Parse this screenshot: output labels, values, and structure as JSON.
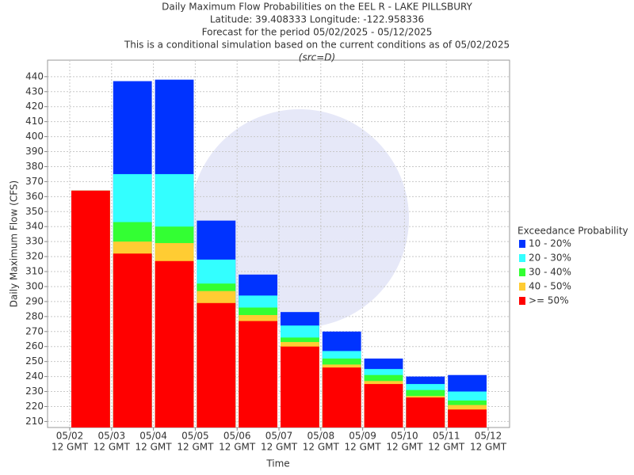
{
  "chart_data": {
    "type": "bar",
    "title": [
      "Daily Maximum Flow Probabilities on the EEL R - LAKE PILLSBURY",
      "Latitude: 39.408333 Longitude: -122.958336",
      "Forecast for the period 05/02/2025 - 05/12/2025",
      "This is a conditional simulation based on the current conditions as of 05/02/2025",
      "(src=D)"
    ],
    "y_label": "Daily Maximum Flow (CFS)",
    "x_label": "Time",
    "legend_title": "Exceedance Probability",
    "x_labels": [
      [
        "05/02",
        "12 GMT"
      ],
      [
        "05/03",
        "12 GMT"
      ],
      [
        "05/04",
        "12 GMT"
      ],
      [
        "05/05",
        "12 GMT"
      ],
      [
        "05/06",
        "12 GMT"
      ],
      [
        "05/07",
        "12 GMT"
      ],
      [
        "05/08",
        "12 GMT"
      ],
      [
        "05/09",
        "12 GMT"
      ],
      [
        "05/10",
        "12 GMT"
      ],
      [
        "05/11",
        "12 GMT"
      ],
      [
        "05/12",
        "12 GMT"
      ]
    ],
    "series": [
      {
        "name": "10 - 20%",
        "color": "#0033ff",
        "values": [
          364,
          437,
          438,
          344,
          308,
          283,
          270,
          252,
          240,
          241
        ]
      },
      {
        "name": "20 - 30%",
        "color": "#33ffff",
        "values": [
          364,
          375,
          375,
          318,
          294,
          274,
          257,
          245,
          235,
          230
        ]
      },
      {
        "name": "30 - 40%",
        "color": "#33ff33",
        "values": [
          364,
          343,
          340,
          302,
          286,
          266,
          252,
          241,
          231,
          224
        ]
      },
      {
        "name": "40 - 50%",
        "color": "#ffcc33",
        "values": [
          364,
          330,
          329,
          297,
          281,
          263,
          248,
          237,
          227,
          221
        ]
      },
      {
        "name": ">= 50%",
        "color": "#ff0000",
        "values": [
          364,
          322,
          317,
          289,
          277,
          260,
          246,
          235,
          226,
          218
        ]
      }
    ],
    "ylim": [
      206,
      451
    ],
    "yticks": [
      210,
      220,
      230,
      240,
      250,
      260,
      270,
      280,
      290,
      300,
      310,
      320,
      330,
      340,
      350,
      360,
      370,
      380,
      390,
      400,
      410,
      420,
      430,
      440
    ],
    "grid": true
  }
}
